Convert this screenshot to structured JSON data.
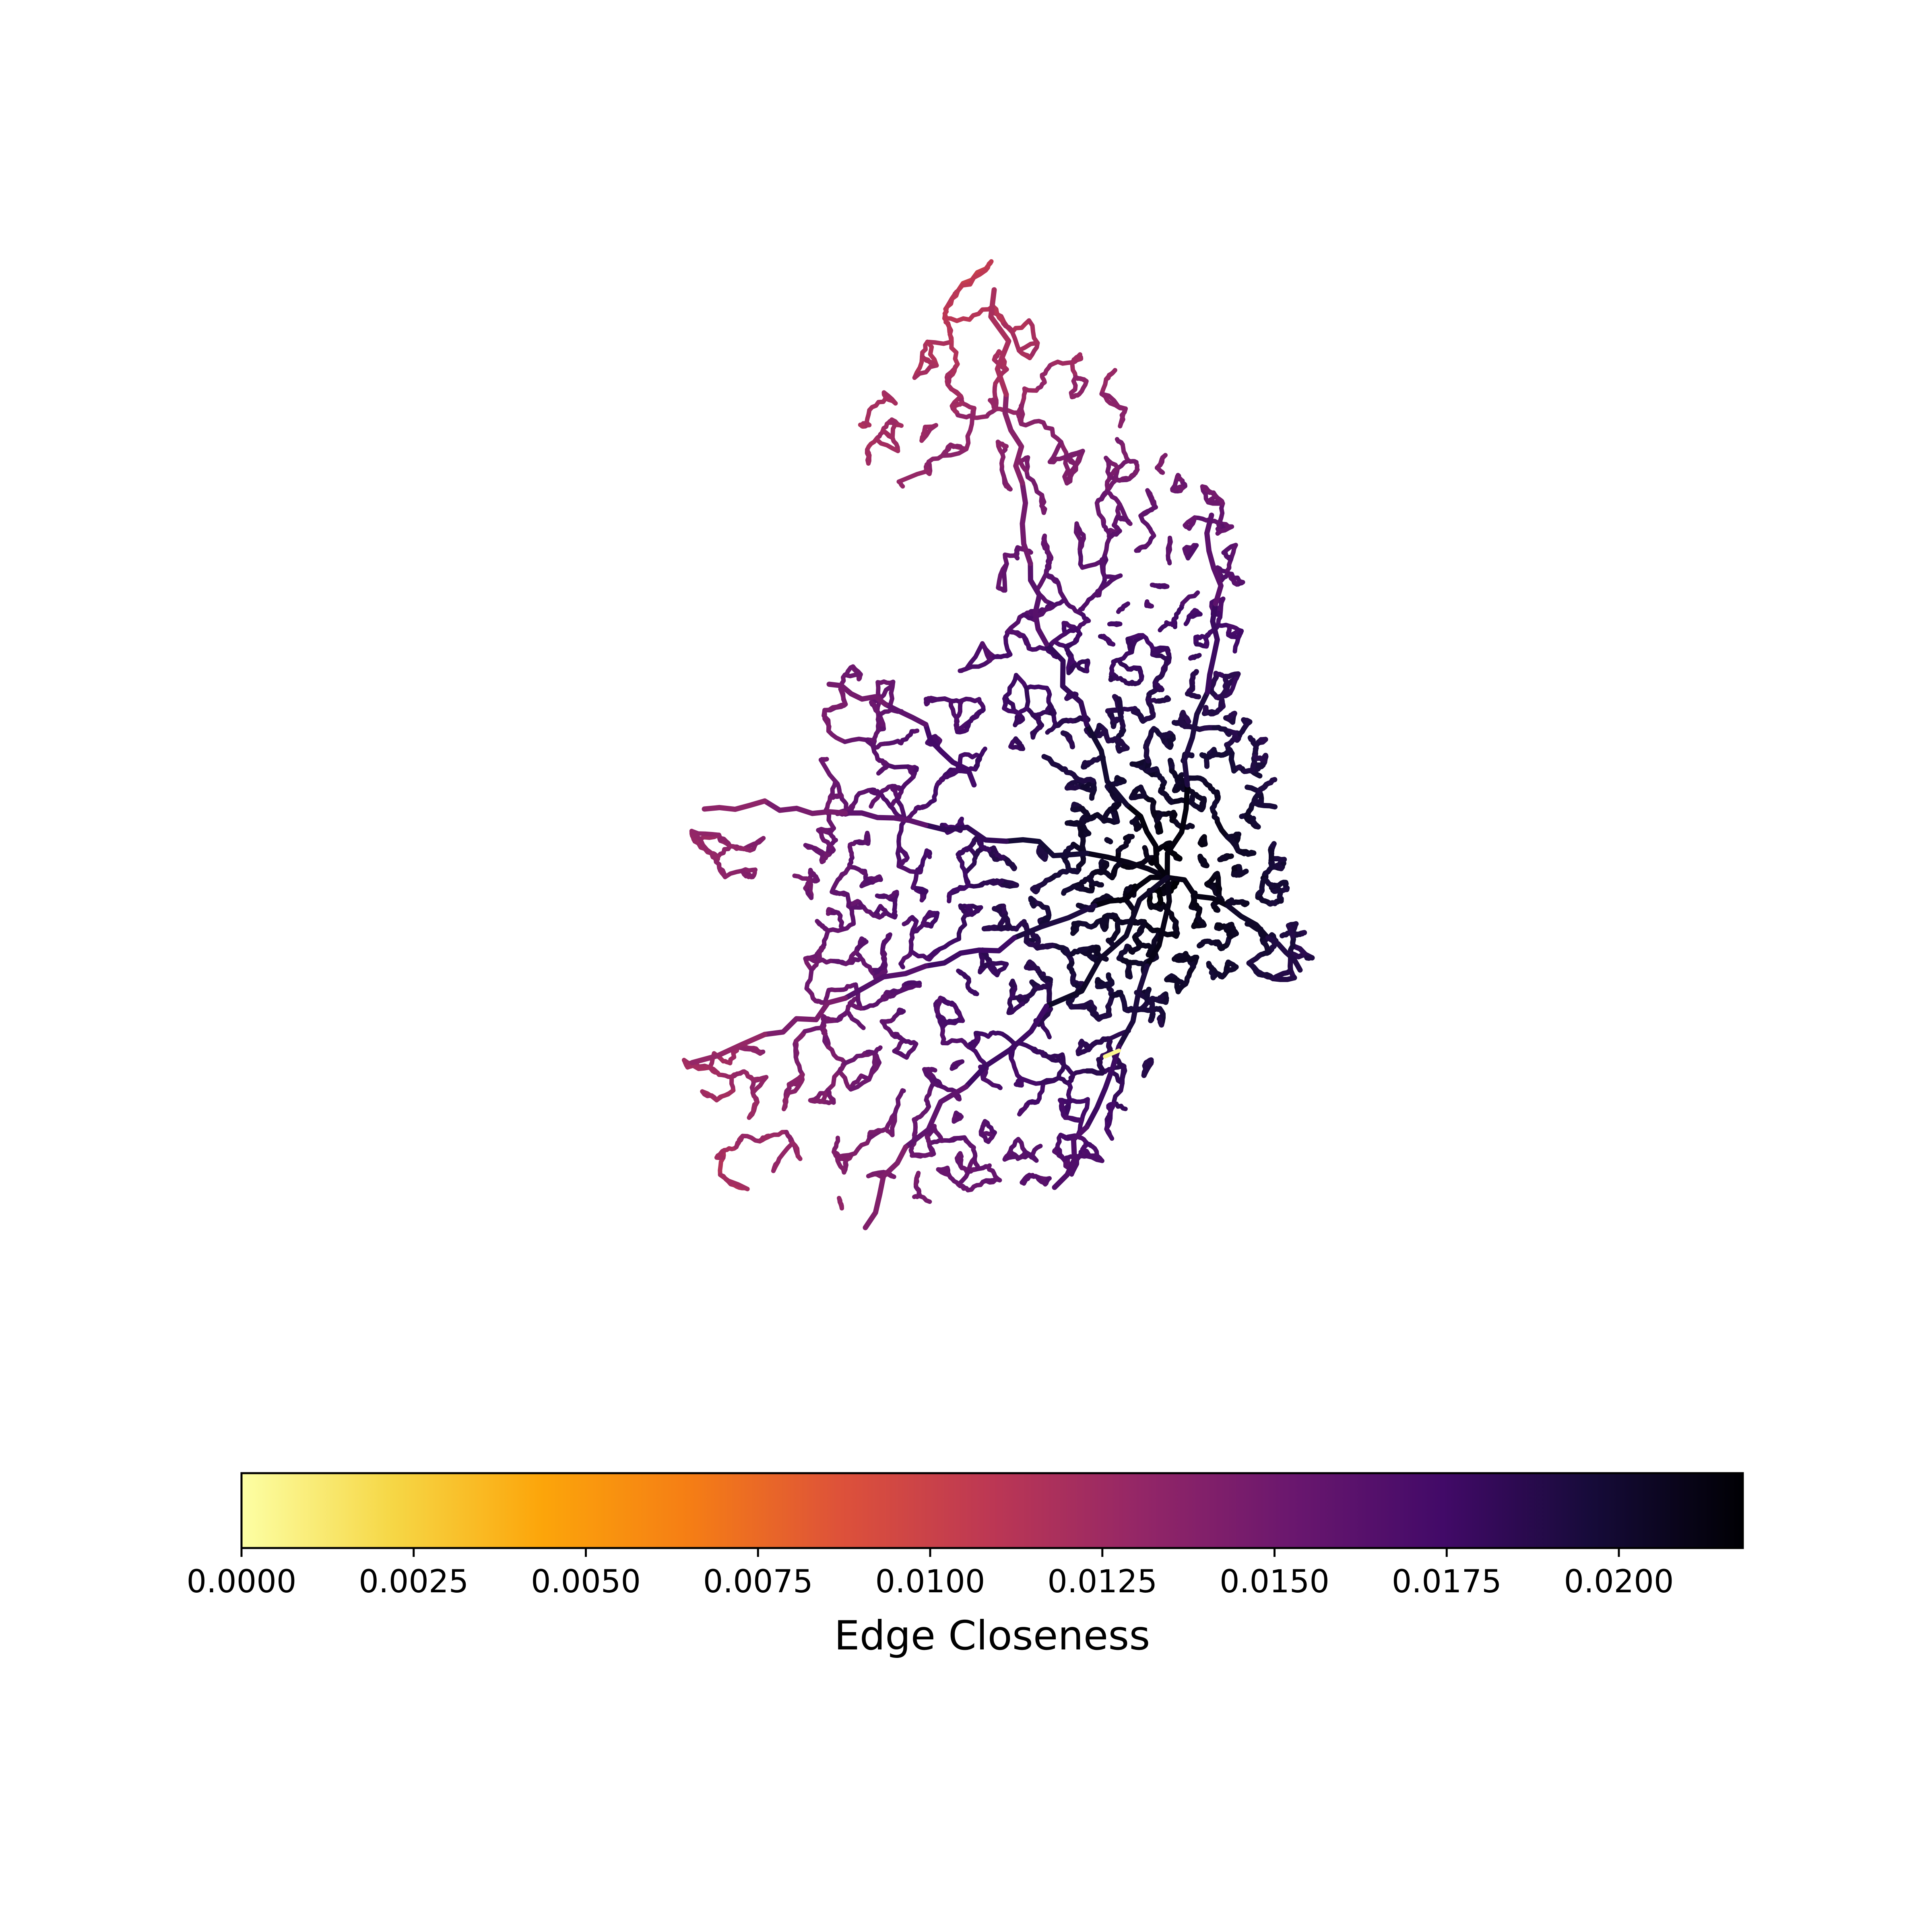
{
  "map": {
    "network_present": true,
    "colormap": "inferno_r",
    "highlight_note": "",
    "colors": {
      "low": "#fcffa4",
      "high": "#000004",
      "background": "#ffffff"
    }
  },
  "colorbar": {
    "label": "Edge Closeness",
    "range": [
      0.0,
      0.0218
    ],
    "ticks": [
      "0.0000",
      "0.0025",
      "0.0050",
      "0.0075",
      "0.0100",
      "0.0125",
      "0.0150",
      "0.0175",
      "0.0200"
    ],
    "tick_values": [
      0.0,
      0.0025,
      0.005,
      0.0075,
      0.01,
      0.0125,
      0.015,
      0.0175,
      0.02
    ],
    "stops": [
      "#fcffa4",
      "#f6d746",
      "#fca50a",
      "#f57d15",
      "#dd513a",
      "#bc3754",
      "#932667",
      "#6a176e",
      "#420a68",
      "#160b39",
      "#000004"
    ]
  }
}
